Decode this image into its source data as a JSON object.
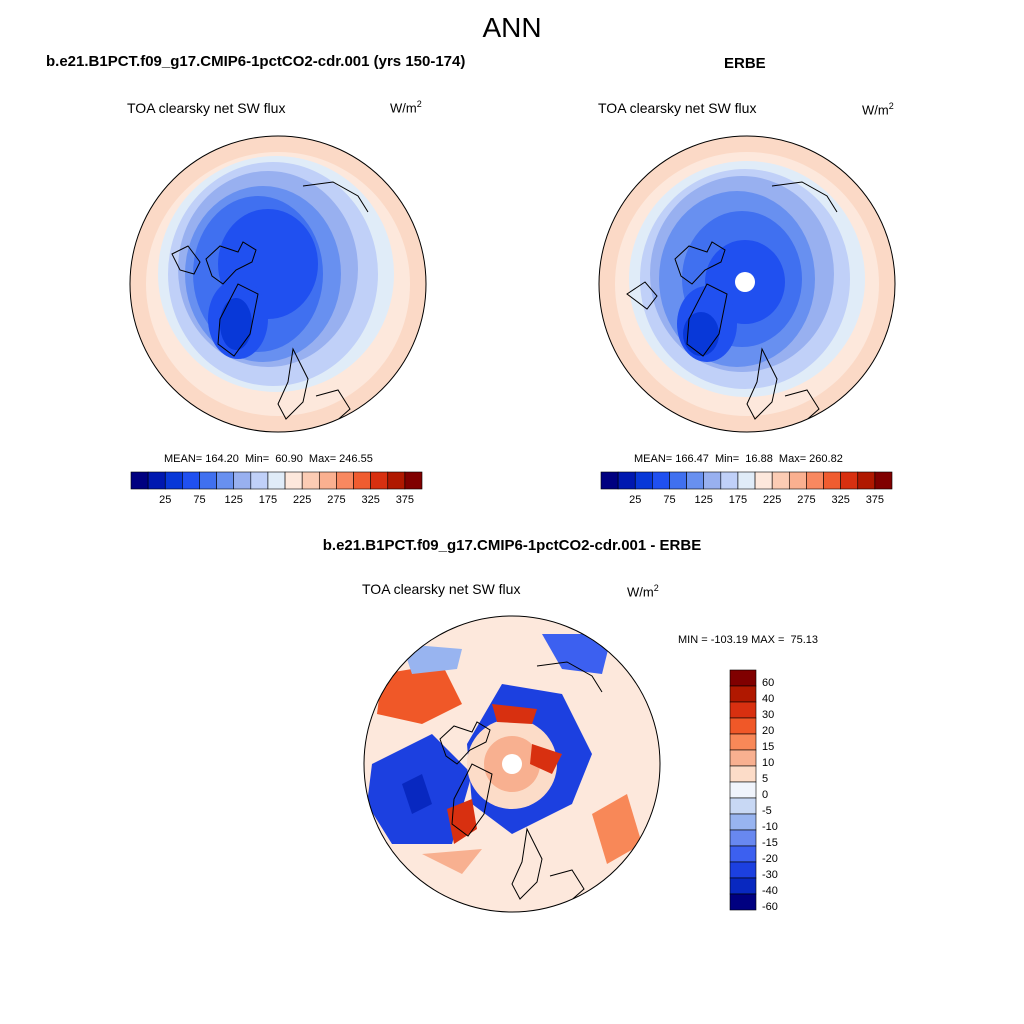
{
  "title": "ANN",
  "top_left": {
    "title": "b.e21.B1PCT.f09_g17.CMIP6-1pctCO2-cdr.001 (yrs 150-174)",
    "variable": "TOA clearsky net SW flux",
    "units_base": "W/m",
    "units_exp": "2",
    "stats": "MEAN= 164.20  Min=  60.90  Max= 246.55"
  },
  "top_right": {
    "title": "ERBE",
    "variable": "TOA clearsky net SW flux",
    "units_base": "W/m",
    "units_exp": "2",
    "stats": "MEAN= 166.47  Min=  16.88  Max= 260.82"
  },
  "abs_colorbar": {
    "colors": [
      "#000080",
      "#0018b0",
      "#0838d8",
      "#2050f0",
      "#4070f0",
      "#6890f0",
      "#98b0f0",
      "#c0d0f8",
      "#e0ecf8",
      "#fde8dc",
      "#fcccb4",
      "#fab090",
      "#f88860",
      "#f05c30",
      "#d83010",
      "#b01800",
      "#800000"
    ],
    "labels": [
      "25",
      "75",
      "125",
      "175",
      "225",
      "275",
      "325",
      "375"
    ]
  },
  "bottom": {
    "title": "b.e21.B1PCT.f09_g17.CMIP6-1pctCO2-cdr.001 - ERBE",
    "variable": "TOA clearsky net SW flux",
    "units_base": "W/m",
    "units_exp": "2",
    "stats": "MIN = -103.19 MAX =  75.13"
  },
  "diff_colorbar": {
    "colors": [
      "#800000",
      "#b01800",
      "#d83010",
      "#f05828",
      "#f88858",
      "#f8b090",
      "#fcdcc8",
      "#f0f4fc",
      "#c8d8f4",
      "#98b4f0",
      "#6888f0",
      "#3c60f0",
      "#1c40e0",
      "#0828c0",
      "#000080"
    ],
    "labels": [
      "60",
      "40",
      "30",
      "20",
      "15",
      "10",
      "5",
      "0",
      "-5",
      "-10",
      "-15",
      "-20",
      "-30",
      "-40",
      "-60"
    ]
  }
}
